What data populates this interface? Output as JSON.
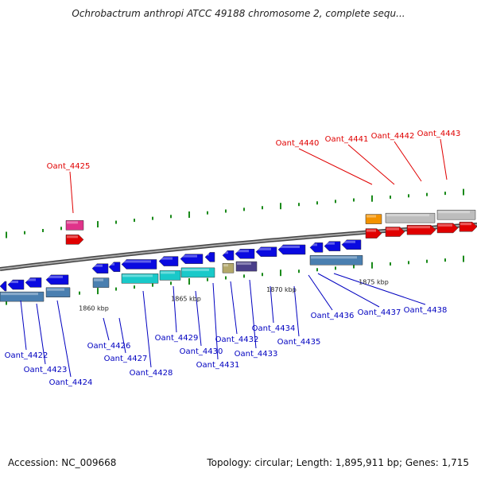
{
  "title": "Ochrobactrum anthropi ATCC 49188 chromosome 2, complete sequ...",
  "footer": {
    "accession": "Accession: NC_009668",
    "summary": "Topology: circular; Length: 1,895,911 bp; Genes: 1,715"
  },
  "colors": {
    "forward": "#0a0ae0",
    "reverse": "#e00000",
    "highlight_gene": "#e0e000",
    "grey_gene": "#bdbdbd",
    "orange_gene": "#f39200",
    "magenta_gene": "#e0338a",
    "cyan_gene": "#19c9c9",
    "steelblue_gene": "#4a7fb0",
    "olive_gene": "#b3a86a",
    "slate_gene": "#4a3f8a",
    "backbone": "#777777",
    "tick": "#1a8a1a",
    "label_red": "#e00000",
    "label_blue": "#0000c0"
  },
  "scale_labels": [
    "1860 kbp",
    "1865 kbp",
    "1870 kbp",
    "1875 kbp"
  ],
  "gene_labels_top": [
    "Oant_4425",
    "Oant_4440",
    "Oant_4441",
    "Oant_4442",
    "Oant_4443"
  ],
  "gene_labels_bottom": [
    "Oant_4422",
    "Oant_4423",
    "Oant_4424",
    "Oant_4426",
    "Oant_4427",
    "Oant_4428",
    "Oant_4429",
    "Oant_4430",
    "Oant_4431",
    "Oant_4432",
    "Oant_4433",
    "Oant_4434",
    "Oant_4435",
    "Oant_4436",
    "Oant_4437",
    "Oant_4438"
  ]
}
